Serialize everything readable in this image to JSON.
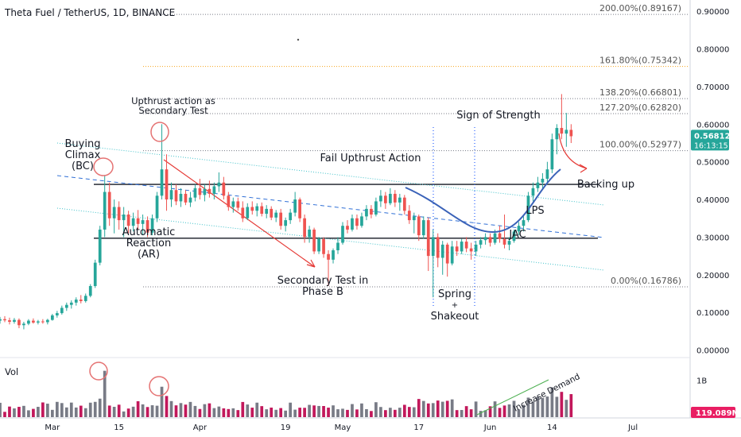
{
  "chart_data": {
    "type": "candlestick",
    "title": "Theta Fuel / TetherUS, 1D, BINANCE",
    "price_axis": {
      "ticks": [
        "0.90000",
        "0.80000",
        "0.70000",
        "0.60000",
        "0.50000",
        "0.40000",
        "0.30000",
        "0.20000",
        "0.10000",
        "0.00000"
      ],
      "ylim": [
        -0.02,
        0.93
      ],
      "current_price": "0.56812",
      "countdown": "16:13:15"
    },
    "x_axis": {
      "ticks": [
        "Mar",
        "15",
        "Apr",
        "19",
        "May",
        "17",
        "Jun",
        "14",
        "Jul"
      ],
      "tick_dates": [
        "2021-03-01",
        "2021-03-15",
        "2021-04-01",
        "2021-04-19",
        "2021-05-01",
        "2021-05-17",
        "2021-06-01",
        "2021-06-14",
        "2021-07-01"
      ],
      "date_range": [
        "2021-02-18",
        "2021-07-12"
      ]
    },
    "fib_levels": [
      {
        "label": "200.00%(0.89167)",
        "value": 0.89167,
        "color": "#787b86"
      },
      {
        "label": "161.80%(0.75342)",
        "value": 0.75342,
        "color": "#f7a21b"
      },
      {
        "label": "138.20%(0.66801)",
        "value": 0.66801,
        "color": "#787b86"
      },
      {
        "label": "127.20%(0.62820)",
        "value": 0.6282,
        "color": "#787b86"
      },
      {
        "label": "100.00%(0.52977)",
        "value": 0.52977,
        "color": "#787b86"
      },
      {
        "label": "0.00%(0.16786)",
        "value": 0.16786,
        "color": "#787b86"
      }
    ],
    "candles": [
      {
        "date": "2021-02-18",
        "o": 0.078,
        "h": 0.088,
        "l": 0.07,
        "c": 0.082
      },
      {
        "date": "2021-02-19",
        "o": 0.082,
        "h": 0.09,
        "l": 0.074,
        "c": 0.079
      },
      {
        "date": "2021-02-20",
        "o": 0.079,
        "h": 0.086,
        "l": 0.068,
        "c": 0.075
      },
      {
        "date": "2021-02-21",
        "o": 0.075,
        "h": 0.085,
        "l": 0.07,
        "c": 0.08
      },
      {
        "date": "2021-02-22",
        "o": 0.08,
        "h": 0.084,
        "l": 0.058,
        "c": 0.066
      },
      {
        "date": "2021-02-23",
        "o": 0.066,
        "h": 0.075,
        "l": 0.055,
        "c": 0.07
      },
      {
        "date": "2021-02-24",
        "o": 0.07,
        "h": 0.082,
        "l": 0.066,
        "c": 0.078
      },
      {
        "date": "2021-02-25",
        "o": 0.078,
        "h": 0.084,
        "l": 0.07,
        "c": 0.073
      },
      {
        "date": "2021-02-26",
        "o": 0.073,
        "h": 0.08,
        "l": 0.068,
        "c": 0.076
      },
      {
        "date": "2021-02-27",
        "o": 0.076,
        "h": 0.082,
        "l": 0.07,
        "c": 0.074
      },
      {
        "date": "2021-02-28",
        "o": 0.074,
        "h": 0.083,
        "l": 0.068,
        "c": 0.08
      },
      {
        "date": "2021-03-01",
        "o": 0.08,
        "h": 0.096,
        "l": 0.078,
        "c": 0.092
      },
      {
        "date": "2021-03-02",
        "o": 0.092,
        "h": 0.104,
        "l": 0.086,
        "c": 0.098
      },
      {
        "date": "2021-03-03",
        "o": 0.098,
        "h": 0.118,
        "l": 0.094,
        "c": 0.112
      },
      {
        "date": "2021-03-04",
        "o": 0.112,
        "h": 0.126,
        "l": 0.104,
        "c": 0.12
      },
      {
        "date": "2021-03-05",
        "o": 0.12,
        "h": 0.132,
        "l": 0.11,
        "c": 0.126
      },
      {
        "date": "2021-03-06",
        "o": 0.126,
        "h": 0.14,
        "l": 0.118,
        "c": 0.134
      },
      {
        "date": "2021-03-07",
        "o": 0.134,
        "h": 0.146,
        "l": 0.124,
        "c": 0.13
      },
      {
        "date": "2021-03-08",
        "o": 0.13,
        "h": 0.15,
        "l": 0.126,
        "c": 0.144
      },
      {
        "date": "2021-03-09",
        "o": 0.144,
        "h": 0.175,
        "l": 0.14,
        "c": 0.17
      },
      {
        "date": "2021-03-10",
        "o": 0.17,
        "h": 0.24,
        "l": 0.165,
        "c": 0.232
      },
      {
        "date": "2021-03-11",
        "o": 0.232,
        "h": 0.33,
        "l": 0.225,
        "c": 0.32
      },
      {
        "date": "2021-03-12",
        "o": 0.32,
        "h": 0.465,
        "l": 0.3,
        "c": 0.42
      },
      {
        "date": "2021-03-13",
        "o": 0.42,
        "h": 0.445,
        "l": 0.33,
        "c": 0.35
      },
      {
        "date": "2021-03-14",
        "o": 0.35,
        "h": 0.4,
        "l": 0.31,
        "c": 0.38
      },
      {
        "date": "2021-03-15",
        "o": 0.38,
        "h": 0.395,
        "l": 0.32,
        "c": 0.345
      },
      {
        "date": "2021-03-16",
        "o": 0.345,
        "h": 0.38,
        "l": 0.3,
        "c": 0.36
      },
      {
        "date": "2021-03-17",
        "o": 0.36,
        "h": 0.37,
        "l": 0.31,
        "c": 0.33
      },
      {
        "date": "2021-03-18",
        "o": 0.33,
        "h": 0.365,
        "l": 0.315,
        "c": 0.35
      },
      {
        "date": "2021-03-19",
        "o": 0.35,
        "h": 0.372,
        "l": 0.32,
        "c": 0.335
      },
      {
        "date": "2021-03-20",
        "o": 0.335,
        "h": 0.36,
        "l": 0.305,
        "c": 0.345
      },
      {
        "date": "2021-03-21",
        "o": 0.345,
        "h": 0.355,
        "l": 0.3,
        "c": 0.312
      },
      {
        "date": "2021-03-22",
        "o": 0.312,
        "h": 0.36,
        "l": 0.305,
        "c": 0.35
      },
      {
        "date": "2021-03-23",
        "o": 0.35,
        "h": 0.42,
        "l": 0.34,
        "c": 0.41
      },
      {
        "date": "2021-03-24",
        "o": 0.41,
        "h": 0.6,
        "l": 0.4,
        "c": 0.48
      },
      {
        "date": "2021-03-25",
        "o": 0.48,
        "h": 0.52,
        "l": 0.37,
        "c": 0.4
      },
      {
        "date": "2021-03-26",
        "o": 0.4,
        "h": 0.445,
        "l": 0.38,
        "c": 0.425
      },
      {
        "date": "2021-03-27",
        "o": 0.425,
        "h": 0.44,
        "l": 0.385,
        "c": 0.395
      },
      {
        "date": "2021-03-28",
        "o": 0.395,
        "h": 0.43,
        "l": 0.38,
        "c": 0.415
      },
      {
        "date": "2021-03-29",
        "o": 0.415,
        "h": 0.425,
        "l": 0.385,
        "c": 0.392
      },
      {
        "date": "2021-03-30",
        "o": 0.392,
        "h": 0.42,
        "l": 0.38,
        "c": 0.405
      },
      {
        "date": "2021-03-31",
        "o": 0.405,
        "h": 0.44,
        "l": 0.395,
        "c": 0.43
      },
      {
        "date": "2021-04-01",
        "o": 0.43,
        "h": 0.455,
        "l": 0.4,
        "c": 0.412
      },
      {
        "date": "2021-04-02",
        "o": 0.412,
        "h": 0.44,
        "l": 0.395,
        "c": 0.428
      },
      {
        "date": "2021-04-03",
        "o": 0.428,
        "h": 0.45,
        "l": 0.405,
        "c": 0.415
      },
      {
        "date": "2021-04-04",
        "o": 0.415,
        "h": 0.445,
        "l": 0.4,
        "c": 0.435
      },
      {
        "date": "2021-04-05",
        "o": 0.435,
        "h": 0.472,
        "l": 0.42,
        "c": 0.445
      },
      {
        "date": "2021-04-06",
        "o": 0.445,
        "h": 0.46,
        "l": 0.4,
        "c": 0.41
      },
      {
        "date": "2021-04-07",
        "o": 0.41,
        "h": 0.42,
        "l": 0.37,
        "c": 0.38
      },
      {
        "date": "2021-04-08",
        "o": 0.38,
        "h": 0.405,
        "l": 0.365,
        "c": 0.395
      },
      {
        "date": "2021-04-09",
        "o": 0.395,
        "h": 0.405,
        "l": 0.37,
        "c": 0.378
      },
      {
        "date": "2021-04-10",
        "o": 0.378,
        "h": 0.395,
        "l": 0.34,
        "c": 0.35
      },
      {
        "date": "2021-04-11",
        "o": 0.35,
        "h": 0.39,
        "l": 0.345,
        "c": 0.38
      },
      {
        "date": "2021-04-12",
        "o": 0.38,
        "h": 0.395,
        "l": 0.36,
        "c": 0.37
      },
      {
        "date": "2021-04-13",
        "o": 0.37,
        "h": 0.39,
        "l": 0.355,
        "c": 0.382
      },
      {
        "date": "2021-04-14",
        "o": 0.382,
        "h": 0.392,
        "l": 0.355,
        "c": 0.362
      },
      {
        "date": "2021-04-15",
        "o": 0.362,
        "h": 0.385,
        "l": 0.35,
        "c": 0.375
      },
      {
        "date": "2021-04-16",
        "o": 0.375,
        "h": 0.382,
        "l": 0.345,
        "c": 0.352
      },
      {
        "date": "2021-04-17",
        "o": 0.352,
        "h": 0.372,
        "l": 0.34,
        "c": 0.365
      },
      {
        "date": "2021-04-18",
        "o": 0.365,
        "h": 0.375,
        "l": 0.32,
        "c": 0.33
      },
      {
        "date": "2021-04-19",
        "o": 0.33,
        "h": 0.352,
        "l": 0.315,
        "c": 0.345
      },
      {
        "date": "2021-04-20",
        "o": 0.345,
        "h": 0.375,
        "l": 0.335,
        "c": 0.365
      },
      {
        "date": "2021-04-21",
        "o": 0.365,
        "h": 0.42,
        "l": 0.355,
        "c": 0.4
      },
      {
        "date": "2021-04-22",
        "o": 0.4,
        "h": 0.405,
        "l": 0.34,
        "c": 0.35
      },
      {
        "date": "2021-04-23",
        "o": 0.35,
        "h": 0.36,
        "l": 0.285,
        "c": 0.3
      },
      {
        "date": "2021-04-24",
        "o": 0.3,
        "h": 0.33,
        "l": 0.285,
        "c": 0.32
      },
      {
        "date": "2021-04-25",
        "o": 0.32,
        "h": 0.325,
        "l": 0.255,
        "c": 0.262
      },
      {
        "date": "2021-04-26",
        "o": 0.262,
        "h": 0.3,
        "l": 0.255,
        "c": 0.295
      },
      {
        "date": "2021-04-27",
        "o": 0.295,
        "h": 0.3,
        "l": 0.245,
        "c": 0.255
      },
      {
        "date": "2021-04-28",
        "o": 0.255,
        "h": 0.265,
        "l": 0.17,
        "c": 0.24
      },
      {
        "date": "2021-04-29",
        "o": 0.24,
        "h": 0.27,
        "l": 0.23,
        "c": 0.265
      },
      {
        "date": "2021-04-30",
        "o": 0.265,
        "h": 0.3,
        "l": 0.255,
        "c": 0.285
      },
      {
        "date": "2021-05-01",
        "o": 0.285,
        "h": 0.34,
        "l": 0.28,
        "c": 0.33
      },
      {
        "date": "2021-05-02",
        "o": 0.33,
        "h": 0.345,
        "l": 0.31,
        "c": 0.32
      },
      {
        "date": "2021-05-03",
        "o": 0.32,
        "h": 0.36,
        "l": 0.315,
        "c": 0.35
      },
      {
        "date": "2021-05-04",
        "o": 0.35,
        "h": 0.36,
        "l": 0.32,
        "c": 0.33
      },
      {
        "date": "2021-05-05",
        "o": 0.33,
        "h": 0.365,
        "l": 0.325,
        "c": 0.355
      },
      {
        "date": "2021-05-06",
        "o": 0.355,
        "h": 0.385,
        "l": 0.345,
        "c": 0.375
      },
      {
        "date": "2021-05-07",
        "o": 0.375,
        "h": 0.385,
        "l": 0.35,
        "c": 0.36
      },
      {
        "date": "2021-05-08",
        "o": 0.36,
        "h": 0.405,
        "l": 0.355,
        "c": 0.395
      },
      {
        "date": "2021-05-09",
        "o": 0.395,
        "h": 0.425,
        "l": 0.38,
        "c": 0.41
      },
      {
        "date": "2021-05-10",
        "o": 0.41,
        "h": 0.42,
        "l": 0.375,
        "c": 0.39
      },
      {
        "date": "2021-05-11",
        "o": 0.39,
        "h": 0.43,
        "l": 0.385,
        "c": 0.415
      },
      {
        "date": "2021-05-12",
        "o": 0.415,
        "h": 0.425,
        "l": 0.38,
        "c": 0.392
      },
      {
        "date": "2021-05-13",
        "o": 0.392,
        "h": 0.415,
        "l": 0.37,
        "c": 0.405
      },
      {
        "date": "2021-05-14",
        "o": 0.405,
        "h": 0.412,
        "l": 0.36,
        "c": 0.37
      },
      {
        "date": "2021-05-15",
        "o": 0.37,
        "h": 0.385,
        "l": 0.335,
        "c": 0.345
      },
      {
        "date": "2021-05-16",
        "o": 0.345,
        "h": 0.365,
        "l": 0.31,
        "c": 0.355
      },
      {
        "date": "2021-05-17",
        "o": 0.355,
        "h": 0.36,
        "l": 0.29,
        "c": 0.305
      },
      {
        "date": "2021-05-18",
        "o": 0.305,
        "h": 0.355,
        "l": 0.295,
        "c": 0.345
      },
      {
        "date": "2021-05-19",
        "o": 0.345,
        "h": 0.352,
        "l": 0.21,
        "c": 0.25
      },
      {
        "date": "2021-05-20",
        "o": 0.25,
        "h": 0.32,
        "l": 0.14,
        "c": 0.3
      },
      {
        "date": "2021-05-21",
        "o": 0.3,
        "h": 0.31,
        "l": 0.22,
        "c": 0.245
      },
      {
        "date": "2021-05-22",
        "o": 0.245,
        "h": 0.29,
        "l": 0.2,
        "c": 0.28
      },
      {
        "date": "2021-05-23",
        "o": 0.28,
        "h": 0.285,
        "l": 0.195,
        "c": 0.23
      },
      {
        "date": "2021-05-24",
        "o": 0.23,
        "h": 0.29,
        "l": 0.225,
        "c": 0.275
      },
      {
        "date": "2021-05-25",
        "o": 0.275,
        "h": 0.29,
        "l": 0.25,
        "c": 0.262
      },
      {
        "date": "2021-05-26",
        "o": 0.262,
        "h": 0.295,
        "l": 0.255,
        "c": 0.288
      },
      {
        "date": "2021-05-27",
        "o": 0.288,
        "h": 0.3,
        "l": 0.26,
        "c": 0.27
      },
      {
        "date": "2021-05-28",
        "o": 0.27,
        "h": 0.285,
        "l": 0.24,
        "c": 0.262
      },
      {
        "date": "2021-05-29",
        "o": 0.262,
        "h": 0.29,
        "l": 0.25,
        "c": 0.28
      },
      {
        "date": "2021-05-30",
        "o": 0.28,
        "h": 0.3,
        "l": 0.27,
        "c": 0.292
      },
      {
        "date": "2021-05-31",
        "o": 0.292,
        "h": 0.31,
        "l": 0.28,
        "c": 0.3
      },
      {
        "date": "2021-06-01",
        "o": 0.3,
        "h": 0.31,
        "l": 0.275,
        "c": 0.285
      },
      {
        "date": "2021-06-02",
        "o": 0.285,
        "h": 0.32,
        "l": 0.28,
        "c": 0.31
      },
      {
        "date": "2021-06-03",
        "o": 0.31,
        "h": 0.33,
        "l": 0.285,
        "c": 0.295
      },
      {
        "date": "2021-06-04",
        "o": 0.295,
        "h": 0.36,
        "l": 0.27,
        "c": 0.28
      },
      {
        "date": "2021-06-05",
        "o": 0.28,
        "h": 0.3,
        "l": 0.265,
        "c": 0.29
      },
      {
        "date": "2021-06-06",
        "o": 0.29,
        "h": 0.32,
        "l": 0.285,
        "c": 0.315
      },
      {
        "date": "2021-06-07",
        "o": 0.315,
        "h": 0.34,
        "l": 0.305,
        "c": 0.33
      },
      {
        "date": "2021-06-08",
        "o": 0.33,
        "h": 0.355,
        "l": 0.315,
        "c": 0.345
      },
      {
        "date": "2021-06-09",
        "o": 0.345,
        "h": 0.42,
        "l": 0.34,
        "c": 0.41
      },
      {
        "date": "2021-06-10",
        "o": 0.41,
        "h": 0.445,
        "l": 0.395,
        "c": 0.43
      },
      {
        "date": "2021-06-11",
        "o": 0.43,
        "h": 0.46,
        "l": 0.42,
        "c": 0.445
      },
      {
        "date": "2021-06-12",
        "o": 0.445,
        "h": 0.47,
        "l": 0.43,
        "c": 0.455
      },
      {
        "date": "2021-06-13",
        "o": 0.455,
        "h": 0.5,
        "l": 0.44,
        "c": 0.48
      },
      {
        "date": "2021-06-14",
        "o": 0.48,
        "h": 0.575,
        "l": 0.47,
        "c": 0.56
      },
      {
        "date": "2021-06-15",
        "o": 0.56,
        "h": 0.6,
        "l": 0.52,
        "c": 0.59
      },
      {
        "date": "2021-06-16",
        "o": 0.59,
        "h": 0.68,
        "l": 0.56,
        "c": 0.575
      },
      {
        "date": "2021-06-17",
        "o": 0.575,
        "h": 0.63,
        "l": 0.54,
        "c": 0.585
      },
      {
        "date": "2021-06-18",
        "o": 0.585,
        "h": 0.6,
        "l": 0.55,
        "c": 0.568
      }
    ],
    "annotations": [
      {
        "id": "title-upthrust",
        "text": [
          "Upthrust action as",
          "Secondary Test"
        ]
      },
      {
        "id": "buying-climax",
        "text": [
          "Buying",
          "Climax",
          "(BC)"
        ]
      },
      {
        "id": "fail-upthrust",
        "text": [
          "Fail Upthrust Action"
        ]
      },
      {
        "id": "sign-strength",
        "text": [
          "Sign of Strength"
        ]
      },
      {
        "id": "backing-up",
        "text": [
          "Backing up"
        ]
      },
      {
        "id": "automatic-reaction",
        "text": [
          "Automatic",
          "Reaction",
          "(AR)"
        ]
      },
      {
        "id": "secondary-test",
        "text": [
          "Secondary Test in",
          "Phase B"
        ]
      },
      {
        "id": "spring",
        "text": [
          "Spring",
          "+",
          "Shakeout"
        ]
      },
      {
        "id": "lps",
        "text": [
          "LPS"
        ]
      },
      {
        "id": "jac",
        "text": [
          "JAC"
        ]
      },
      {
        "id": "increase-demand",
        "text": [
          "Increase Demand"
        ]
      }
    ],
    "volume": {
      "label": "Vol",
      "ticks": [
        "1B"
      ],
      "current": "119.089M",
      "ylim": [
        0,
        1.5
      ]
    }
  },
  "colors": {
    "up": "#26a69a",
    "down": "#ef5350",
    "up_vol": "#787b86",
    "down_vol": "#c2185b",
    "fib_orange": "#f7a21b",
    "channel": "#3fc1c9",
    "mid_dashed": "#2f6fd6",
    "curve": "#3a62b8",
    "red_line": "#e53935",
    "circle": "#e57373",
    "spring_dot": "#2962ff",
    "increase_line": "#4caf50",
    "price_label": "#26a69a",
    "vol_label": "#e91e63"
  }
}
